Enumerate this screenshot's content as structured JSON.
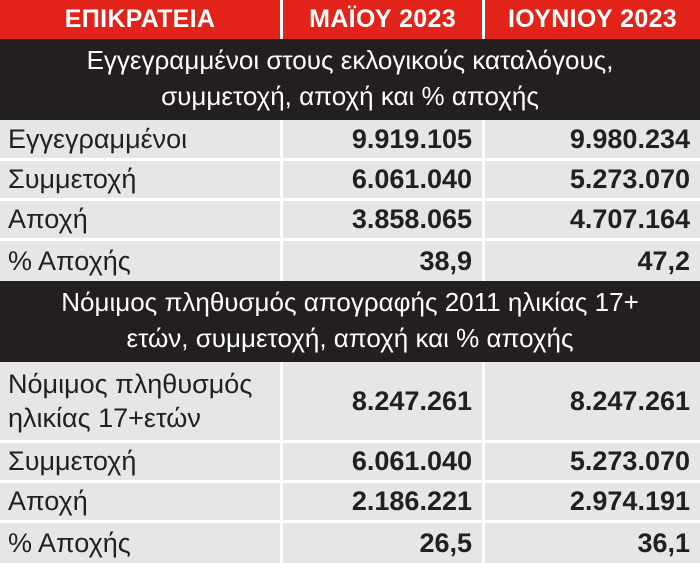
{
  "header": {
    "col0": "ΕΠΙΚΡΑΤΕΙΑ",
    "col1": "ΜΑΪΟΥ 2023",
    "col2": "ΙΟΥΝΙΟΥ 2023"
  },
  "section1": {
    "title_line1": "Εγγεγραμμένοι στους εκλογικούς καταλόγους,",
    "title_line2": "συμμετοχή, αποχή και % αποχής",
    "rows": [
      {
        "label": "Εγγεγραμμένοι",
        "may": "9.919.105",
        "june": "9.980.234"
      },
      {
        "label": "Συμμετοχή",
        "may": "6.061.040",
        "june": "5.273.070"
      },
      {
        "label": "Αποχή",
        "may": "3.858.065",
        "june": "4.707.164"
      },
      {
        "label": "% Αποχής",
        "may": "38,9",
        "june": "47,2"
      }
    ]
  },
  "section2": {
    "title_line1": "Νόμιμος πληθυσμός απογραφής 2011 ηλικίας 17+",
    "title_line2": "ετών, συμμετοχή, αποχή και % αποχής",
    "first_row": {
      "label_line1": "Νόμιμος πληθυσμός",
      "label_line2": "ηλικίας 17+ετών",
      "may": "8.247.261",
      "june": "8.247.261"
    },
    "rows": [
      {
        "label": "Συμμετοχή",
        "may": "6.061.040",
        "june": "5.273.070"
      },
      {
        "label": "Αποχή",
        "may": "2.186.221",
        "june": "2.974.191"
      },
      {
        "label": "% Αποχής",
        "may": "26,5",
        "june": "36,1"
      }
    ]
  },
  "colors": {
    "header_red": "#e2231a",
    "banner_black": "#231f20",
    "row_gray": "#e6e6e6"
  }
}
